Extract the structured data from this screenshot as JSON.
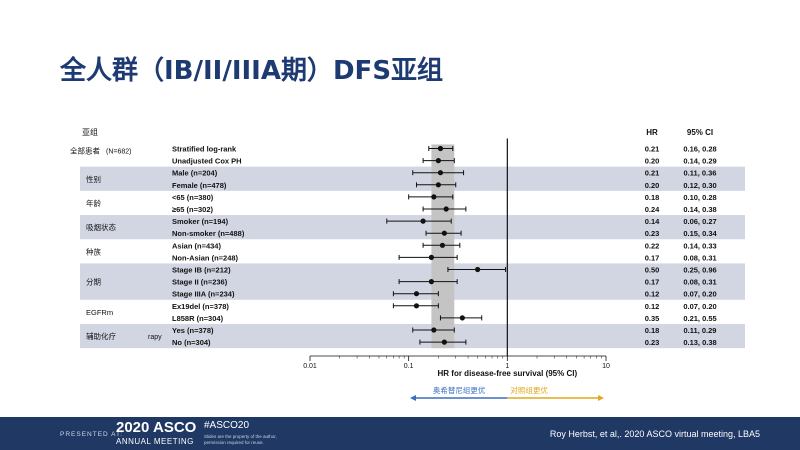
{
  "slide": {
    "title": "全人群（IB/II/IIIA期）DFS亚组"
  },
  "chart_data": {
    "type": "forest",
    "xscale": "log",
    "xlim": [
      0.01,
      10
    ],
    "xticks": [
      0.01,
      0.1,
      1,
      10
    ],
    "xtick_labels": [
      "0.01",
      "0.1",
      "1",
      "10"
    ],
    "xlabel": "HR for disease-free survival (95% CI)",
    "reference_line": 1,
    "shaded_band": [
      0.17,
      0.29
    ],
    "header": {
      "group": "亚组",
      "hr": "HR",
      "ci": "95% CI"
    },
    "groups": [
      {
        "label": "全部患者",
        "note": "(N=682)",
        "shaded": false,
        "rows": [
          0,
          1
        ]
      },
      {
        "label": "性别",
        "note": "",
        "shaded": true,
        "rows": [
          2,
          3
        ]
      },
      {
        "label": "年龄",
        "note": "",
        "shaded": false,
        "rows": [
          4,
          5
        ]
      },
      {
        "label": "吸烟状态",
        "note": "",
        "shaded": true,
        "rows": [
          6,
          7
        ]
      },
      {
        "label": "种族",
        "note": "",
        "shaded": false,
        "rows": [
          8,
          9
        ]
      },
      {
        "label": "分期",
        "note": "",
        "shaded": true,
        "rows": [
          10,
          11,
          12
        ]
      },
      {
        "label": "EGFRm",
        "note": "",
        "shaded": false,
        "rows": [
          13,
          14
        ]
      },
      {
        "label": "辅助化疗",
        "note": "rapy",
        "shaded": true,
        "rows": [
          15,
          16
        ]
      }
    ],
    "rows": [
      {
        "label": "Stratified log-rank",
        "hr": 0.21,
        "lo": 0.16,
        "hi": 0.28,
        "hr_text": "0.21",
        "ci_text": "0.16, 0.28"
      },
      {
        "label": "Unadjusted Cox PH",
        "hr": 0.2,
        "lo": 0.14,
        "hi": 0.29,
        "hr_text": "0.20",
        "ci_text": "0.14, 0.29"
      },
      {
        "label": "Male (n=204)",
        "hr": 0.21,
        "lo": 0.11,
        "hi": 0.36,
        "hr_text": "0.21",
        "ci_text": "0.11, 0.36"
      },
      {
        "label": "Female (n=478)",
        "hr": 0.2,
        "lo": 0.12,
        "hi": 0.3,
        "hr_text": "0.20",
        "ci_text": "0.12, 0.30"
      },
      {
        "label": "<65 (n=380)",
        "hr": 0.18,
        "lo": 0.1,
        "hi": 0.28,
        "hr_text": "0.18",
        "ci_text": "0.10, 0.28"
      },
      {
        "label": "≥65 (n=302)",
        "hr": 0.24,
        "lo": 0.14,
        "hi": 0.38,
        "hr_text": "0.24",
        "ci_text": "0.14, 0.38"
      },
      {
        "label": "Smoker (n=194)",
        "hr": 0.14,
        "lo": 0.06,
        "hi": 0.27,
        "hr_text": "0.14",
        "ci_text": "0.06, 0.27"
      },
      {
        "label": "Non-smoker (n=488)",
        "hr": 0.23,
        "lo": 0.15,
        "hi": 0.34,
        "hr_text": "0.23",
        "ci_text": "0.15, 0.34"
      },
      {
        "label": "Asian (n=434)",
        "hr": 0.22,
        "lo": 0.14,
        "hi": 0.33,
        "hr_text": "0.22",
        "ci_text": "0.14, 0.33"
      },
      {
        "label": "Non-Asian (n=248)",
        "hr": 0.17,
        "lo": 0.08,
        "hi": 0.31,
        "hr_text": "0.17",
        "ci_text": "0.08, 0.31"
      },
      {
        "label": "Stage IB (n=212)",
        "hr": 0.5,
        "lo": 0.25,
        "hi": 0.96,
        "hr_text": "0.50",
        "ci_text": "0.25, 0.96"
      },
      {
        "label": "Stage II (n=236)",
        "hr": 0.17,
        "lo": 0.08,
        "hi": 0.31,
        "hr_text": "0.17",
        "ci_text": "0.08, 0.31"
      },
      {
        "label": "Stage IIIA (n=234)",
        "hr": 0.12,
        "lo": 0.07,
        "hi": 0.2,
        "hr_text": "0.12",
        "ci_text": "0.07, 0.20"
      },
      {
        "label": "Ex19del (n=378)",
        "hr": 0.12,
        "lo": 0.07,
        "hi": 0.2,
        "hr_text": "0.12",
        "ci_text": "0.07, 0.20"
      },
      {
        "label": "L858R (n=304)",
        "hr": 0.35,
        "lo": 0.21,
        "hi": 0.55,
        "hr_text": "0.35",
        "ci_text": "0.21, 0.55"
      },
      {
        "label": "Yes (n=378)",
        "hr": 0.18,
        "lo": 0.11,
        "hi": 0.29,
        "hr_text": "0.18",
        "ci_text": "0.11, 0.29"
      },
      {
        "label": "No (n=304)",
        "hr": 0.23,
        "lo": 0.13,
        "hi": 0.38,
        "hr_text": "0.23",
        "ci_text": "0.13, 0.38"
      }
    ],
    "favor_left": {
      "label": "奥希替尼组更优",
      "color": "#3a6fbf"
    },
    "favor_right": {
      "label": "对照组更优",
      "color": "#e0a81c"
    },
    "colors": {
      "band": "#c4c4c4",
      "row_shade": "#d2d6e2",
      "point": "#111111"
    }
  },
  "footer": {
    "presented_at": "PRESENTED AT:",
    "logo_year": "2020 ASCO",
    "logo_sub": "ANNUAL MEETING",
    "hashtag": "#ASCO20",
    "disclaimer": "Slides are the property of the author, permission required for reuse.",
    "citation": "Roy Herbst, et al,. 2020 ASCO virtual meeting, LBA5"
  }
}
